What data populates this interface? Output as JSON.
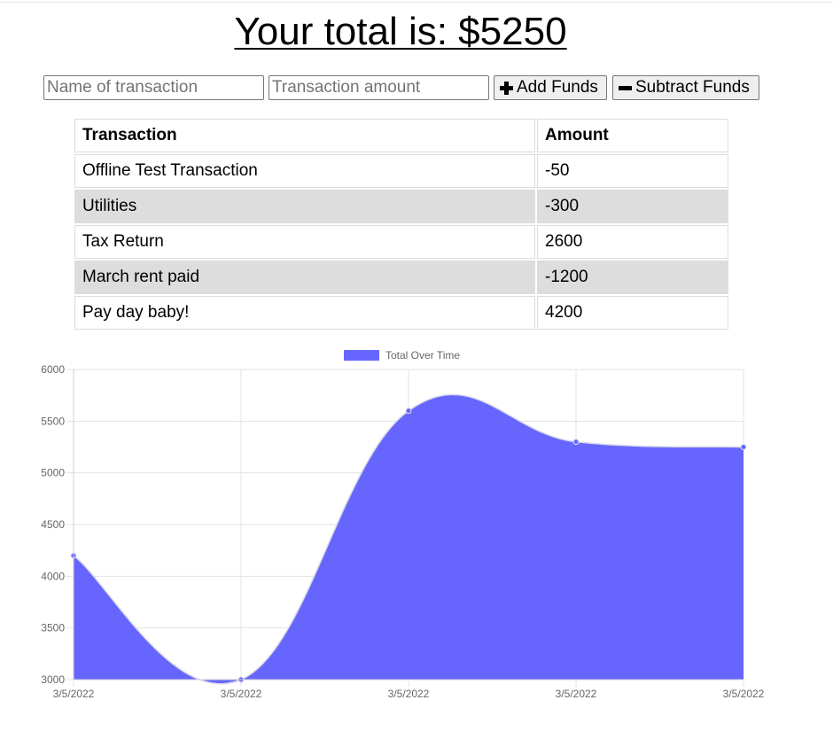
{
  "header": {
    "total_prefix": "Your total is: $",
    "total_value": "5250"
  },
  "form": {
    "name_placeholder": "Name of transaction",
    "amount_placeholder": "Transaction amount",
    "add_label": "Add Funds",
    "subtract_label": "Subtract Funds",
    "add_icon": "plus-icon",
    "subtract_icon": "minus-icon"
  },
  "table": {
    "headers": [
      "Transaction",
      "Amount"
    ],
    "rows": [
      {
        "name": "Offline Test Transaction",
        "amount": "-50"
      },
      {
        "name": "Utilities",
        "amount": "-300"
      },
      {
        "name": "Tax Return",
        "amount": "2600"
      },
      {
        "name": "March rent paid",
        "amount": "-1200"
      },
      {
        "name": "Pay day baby!",
        "amount": "4200"
      }
    ]
  },
  "chart_data": {
    "type": "area",
    "categories": [
      "3/5/2022",
      "3/5/2022",
      "3/5/2022",
      "3/5/2022",
      "3/5/2022"
    ],
    "series": [
      {
        "name": "Total Over Time",
        "values": [
          4200,
          3000,
          5600,
          5300,
          5250
        ],
        "color": "#6666ff"
      }
    ],
    "ylim": [
      3000,
      6000
    ],
    "yticks": [
      3000,
      3500,
      4000,
      4500,
      5000,
      5500,
      6000
    ],
    "grid": true,
    "legend": "top-center"
  }
}
